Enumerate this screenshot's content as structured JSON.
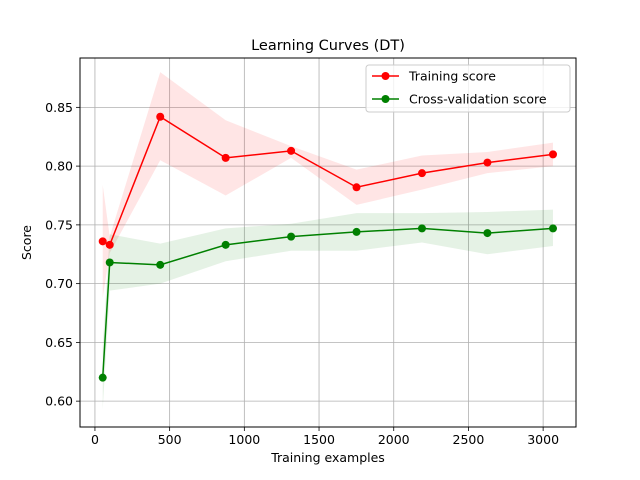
{
  "chart_data": {
    "type": "line",
    "title": "Learning Curves (DT)",
    "xlabel": "Training examples",
    "ylabel": "Score",
    "xlim": [
      -100,
      3220
    ],
    "ylim": [
      0.578,
      0.892
    ],
    "xticks": [
      0,
      500,
      1000,
      1500,
      2000,
      2500,
      3000
    ],
    "xtick_labels": [
      "0",
      "500",
      "1000",
      "1500",
      "2000",
      "2500",
      "3000"
    ],
    "yticks": [
      0.6,
      0.65,
      0.7,
      0.75,
      0.8,
      0.85
    ],
    "ytick_labels": [
      "0.60",
      "0.65",
      "0.70",
      "0.75",
      "0.80",
      "0.85"
    ],
    "grid": true,
    "legend_position": "top-right",
    "x": [
      52,
      99,
      437,
      875,
      1313,
      1751,
      2189,
      2627,
      3066
    ],
    "series": [
      {
        "name": "Training score",
        "color": "#ff0000",
        "band_color": "#ff0000",
        "values": [
          0.736,
          0.733,
          0.842,
          0.807,
          0.813,
          0.782,
          0.794,
          0.803,
          0.81
        ],
        "lower": [
          0.688,
          0.726,
          0.805,
          0.775,
          0.807,
          0.767,
          0.78,
          0.794,
          0.8
        ],
        "upper": [
          0.784,
          0.74,
          0.88,
          0.839,
          0.817,
          0.797,
          0.809,
          0.812,
          0.82
        ]
      },
      {
        "name": "Cross-validation score",
        "color": "#008000",
        "band_color": "#008000",
        "values": [
          0.62,
          0.718,
          0.716,
          0.733,
          0.74,
          0.744,
          0.747,
          0.743,
          0.747
        ],
        "lower": [
          0.593,
          0.694,
          0.7,
          0.719,
          0.728,
          0.728,
          0.735,
          0.725,
          0.732
        ],
        "upper": [
          0.647,
          0.742,
          0.734,
          0.747,
          0.751,
          0.76,
          0.76,
          0.761,
          0.763
        ]
      }
    ]
  }
}
